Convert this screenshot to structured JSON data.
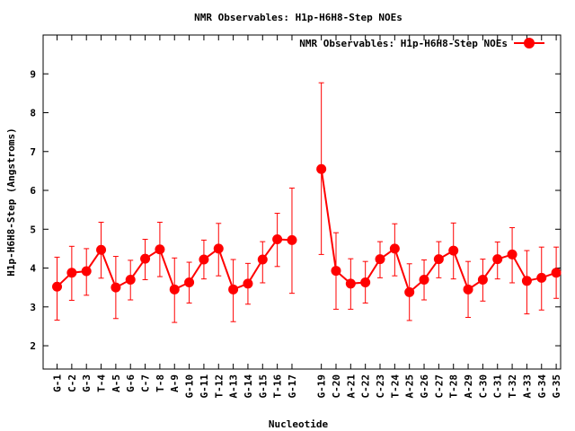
{
  "chart_data": {
    "type": "line",
    "title": "NMR Observables: H1p-H6H8-Step NOEs",
    "xlabel": "Nucleotide",
    "ylabel": "H1p-H6H8-Step (Angstroms)",
    "ylim": [
      1.4,
      10.0
    ],
    "yticks": [
      2,
      3,
      4,
      5,
      6,
      7,
      8,
      9
    ],
    "legend": {
      "label": "NMR Observables: H1p-H6H8-Step NOEs",
      "placement": "top-right"
    },
    "categories": [
      "G-1",
      "C-2",
      "G-3",
      "T-4",
      "A-5",
      "G-6",
      "C-7",
      "T-8",
      "A-9",
      "G-10",
      "G-11",
      "T-12",
      "A-13",
      "G-14",
      "G-15",
      "T-16",
      "G-17",
      "G-19",
      "C-20",
      "A-21",
      "C-22",
      "C-23",
      "T-24",
      "A-25",
      "G-26",
      "C-27",
      "T-28",
      "A-29",
      "C-30",
      "C-31",
      "T-32",
      "A-33",
      "G-34",
      "G-35"
    ],
    "positions": [
      1,
      2,
      3,
      4,
      5,
      6,
      7,
      8,
      9,
      10,
      11,
      12,
      13,
      14,
      15,
      16,
      17,
      19,
      20,
      21,
      22,
      23,
      24,
      25,
      26,
      27,
      28,
      29,
      30,
      31,
      32,
      33,
      34,
      35
    ],
    "series": [
      {
        "name": "NMR Observables: H1p-H6H8-Step NOEs",
        "color": "#ff0000",
        "values": [
          3.52,
          3.88,
          3.92,
          4.47,
          3.5,
          3.7,
          4.24,
          4.48,
          3.45,
          3.63,
          4.22,
          4.5,
          3.45,
          3.6,
          4.22,
          4.74,
          4.72,
          6.55,
          3.93,
          3.6,
          3.63,
          4.23,
          4.5,
          3.38,
          3.7,
          4.23,
          4.45,
          3.45,
          3.7,
          4.23,
          4.35,
          3.67,
          3.75,
          3.88
        ],
        "err_low": [
          2.66,
          3.17,
          3.3,
          3.74,
          2.7,
          3.18,
          3.7,
          3.78,
          2.6,
          3.1,
          3.72,
          3.8,
          2.62,
          3.07,
          3.62,
          4.04,
          3.35,
          4.35,
          2.94,
          2.94,
          3.1,
          3.75,
          3.8,
          2.65,
          3.18,
          3.75,
          3.72,
          2.73,
          3.15,
          3.72,
          3.62,
          2.82,
          2.92,
          3.22
        ],
        "err_high": [
          4.28,
          4.56,
          4.5,
          5.18,
          4.3,
          4.2,
          4.74,
          5.18,
          4.26,
          4.15,
          4.72,
          5.15,
          4.22,
          4.12,
          4.68,
          5.41,
          6.06,
          8.77,
          4.91,
          4.24,
          4.17,
          4.68,
          5.14,
          4.11,
          4.21,
          4.68,
          5.16,
          4.17,
          4.23,
          4.67,
          5.04,
          4.45,
          4.54,
          4.54
        ]
      }
    ]
  }
}
